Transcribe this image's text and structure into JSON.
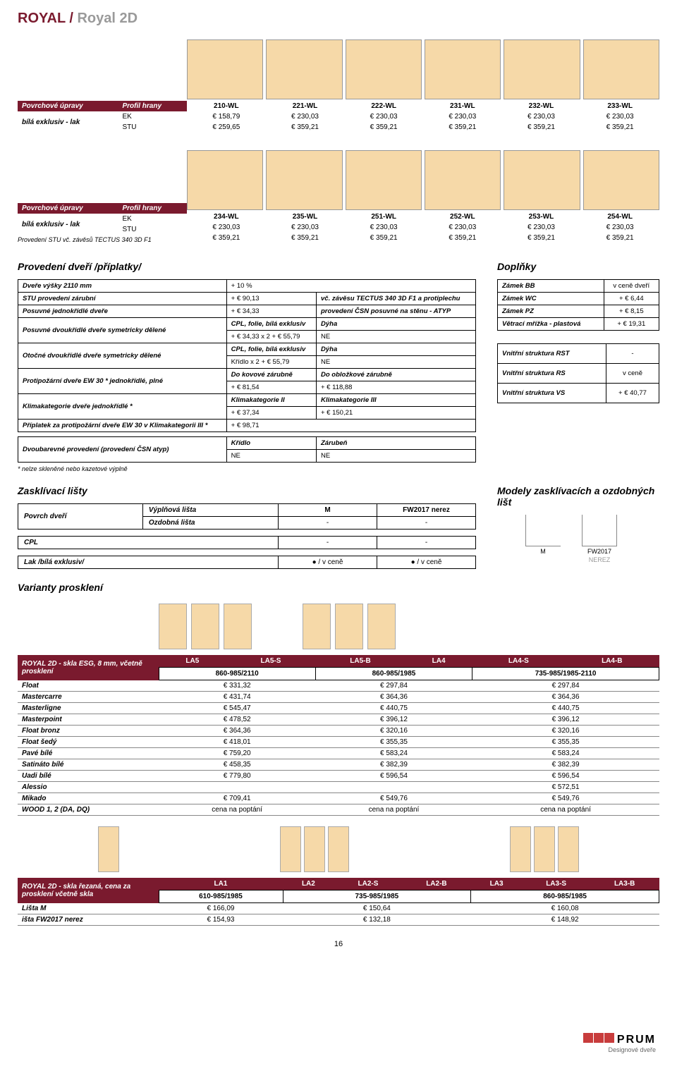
{
  "title_a": "ROYAL /",
  "title_b": " Royal 2D",
  "surface_label": "Povrchové úpravy",
  "profile_label": "Profil hrany",
  "finish_row_label": "bílá exklusiv - lak",
  "ek": "EK",
  "stu": "STU",
  "block1": {
    "models": [
      "210-WL",
      "221-WL",
      "222-WL",
      "231-WL",
      "232-WL",
      "233-WL"
    ],
    "ek": [
      "€ 158,79",
      "€ 230,03",
      "€ 230,03",
      "€ 230,03",
      "€ 230,03",
      "€ 230,03"
    ],
    "stu": [
      "€ 259,65",
      "€ 359,21",
      "€ 359,21",
      "€ 359,21",
      "€ 359,21",
      "€ 359,21"
    ]
  },
  "block2": {
    "models": [
      "234-WL",
      "235-WL",
      "251-WL",
      "252-WL",
      "253-WL",
      "254-WL"
    ],
    "ek": [
      "€ 230,03",
      "€ 230,03",
      "€ 230,03",
      "€ 230,03",
      "€ 230,03",
      "€ 230,03"
    ],
    "stu": [
      "€ 359,21",
      "€ 359,21",
      "€ 359,21",
      "€ 359,21",
      "€ 359,21",
      "€ 359,21"
    ],
    "note": "Provedení STU vč. závěsů TECTUS 340 3D F1"
  },
  "sec_provedeni": "Provedení dveří /příplatky/",
  "sec_doplnky": "Doplňky",
  "prov": {
    "r1_l": "Dveře výšky 2110 mm",
    "r1_v": "+ 10 %",
    "r2_l": "STU provedení zárubní",
    "r2_v": "+ € 90,13",
    "r2_v2": "vč. závěsu TECTUS 340 3D F1 a protiplechu",
    "r3_l": "Posuvné jednokřídlé dveře",
    "r3_v": "+ € 34,33",
    "r3_v2": "provedení ČSN posuvné na stěnu - ATYP",
    "r4_l": "Posuvné dvoukřídlé dveře symetricky dělené",
    "r4_a": "CPL, folie, bílá exklusiv",
    "r4_b": "Dýha",
    "r4_c": "+ € 34,33 x 2    + € 55,79",
    "r4_d": "NE",
    "r5_l": "Otočné dvoukřídlé dveře symetricky dělené",
    "r5_a": "CPL, folie, bílá exklusiv",
    "r5_b": "Dýha",
    "r5_c": "Křídlo x 2        + € 55,79",
    "r5_d": "NE",
    "r6_l": "Protipožární dveře EW 30 * jednokřídlé, plné",
    "r6_a": "Do kovové zárubně",
    "r6_b": "Do obložkové zárubně",
    "r6_c": "+ € 81,54",
    "r6_d": "+ € 118,88",
    "r7_l": "Klimakategorie dveře jednokřídlé *",
    "r7_a": "Klimakategorie II",
    "r7_b": "Klimakategorie III",
    "r7_c": "+ € 37,34",
    "r7_d": "+ € 150,21",
    "r8_l": "Příplatek za protipožární dveře EW 30 v Klimakategorii III *",
    "r8_v": "+ € 98,71",
    "r9_l": "Dvoubarevné provedení (provedení ČSN atyp)",
    "r9_a": "Křídlo",
    "r9_b": "Zárubeň",
    "r9_c": "NE",
    "r9_d": "NE",
    "note": "* nelze skleněné nebo kazetové výplně"
  },
  "dop": {
    "r1_l": "Zámek BB",
    "r1_v": "v ceně dveří",
    "r2_l": "Zámek WC",
    "r2_v": "+ € 6,44",
    "r3_l": "Zámek PZ",
    "r3_v": "+ € 8,15",
    "r4_l": "Větrací mřížka - plastová",
    "r4_v": "+ € 19,31",
    "r5_l": "Vnitřní struktura RST",
    "r5_v": "-",
    "r6_l": "Vnitřní struktura RS",
    "r6_v": "v ceně",
    "r7_l": "Vnitřní struktura VS",
    "r7_v": "+ € 40,77"
  },
  "sec_zl": "Zasklívací lišty",
  "sec_models": "Modely zasklívacích a ozdobných lišt",
  "zl": {
    "c1": "Povrch dveří",
    "h1": "Výplňová lišta",
    "h2": "M",
    "h3": "FW2017 nerez",
    "oz": "Ozdobná lišta",
    "dash": "-",
    "cpl": "CPL",
    "lak": "Lak /bílá exklusiv/",
    "vcene": "● / v ceně",
    "shape_m": "M",
    "shape_fw": "FW2017",
    "shape_fw2": "NEREZ"
  },
  "sec_var": "Varianty prosklení",
  "var1": {
    "title_l": "ROYAL 2D - skla ESG, 8 mm, včetně prosklení",
    "hdr": [
      "LA5",
      "LA5-S",
      "LA5-B",
      "LA4",
      "LA4-S",
      "LA4-B"
    ],
    "sub": [
      "860-985/2110",
      "860-985/1985",
      "735-985/1985-2110"
    ],
    "rows": [
      {
        "l": "Float",
        "v": [
          "€ 331,32",
          "€ 297,84",
          "€ 297,84"
        ]
      },
      {
        "l": "Mastercarre",
        "v": [
          "€ 431,74",
          "€ 364,36",
          "€ 364,36"
        ]
      },
      {
        "l": "Masterligne",
        "v": [
          "€ 545,47",
          "€ 440,75",
          "€ 440,75"
        ]
      },
      {
        "l": "Masterpoint",
        "v": [
          "€ 478,52",
          "€ 396,12",
          "€ 396,12"
        ]
      },
      {
        "l": "Float bronz",
        "v": [
          "€ 364,36",
          "€ 320,16",
          "€ 320,16"
        ]
      },
      {
        "l": "Float šedý",
        "v": [
          "€ 418,01",
          "€ 355,35",
          "€ 355,35"
        ]
      },
      {
        "l": "Pavé bílé",
        "v": [
          "€ 759,20",
          "€ 583,24",
          "€ 583,24"
        ]
      },
      {
        "l": "Satináto bílé",
        "v": [
          "€ 458,35",
          "€ 382,39",
          "€ 382,39"
        ]
      },
      {
        "l": "Uadi bílé",
        "v": [
          "€ 779,80",
          "€ 596,54",
          "€ 596,54"
        ]
      },
      {
        "l": "Alessio",
        "v": [
          "",
          "",
          "€ 572,51"
        ]
      },
      {
        "l": "Mikado",
        "v": [
          "€ 709,41",
          "€ 549,76",
          "€ 549,76"
        ]
      },
      {
        "l": "WOOD 1, 2 (DA, DQ)",
        "v": [
          "cena na poptání",
          "cena na poptání",
          "cena na poptání"
        ]
      }
    ]
  },
  "var2": {
    "title_l": "ROYAL 2D - skla řezaná, cena za prosklení včetně skla",
    "hdr": [
      "LA1",
      "",
      "LA2",
      "LA2-S",
      "LA2-B",
      "",
      "LA3",
      "LA3-S",
      "LA3-B"
    ],
    "sub": [
      "610-985/1985",
      "735-985/1985",
      "860-985/1985"
    ],
    "rows": [
      {
        "l": "Lišta M",
        "v": [
          "€ 166,09",
          "€ 150,64",
          "€ 160,08"
        ]
      },
      {
        "l": "išta FW2017 nerez",
        "v": [
          "€ 154,93",
          "€ 132,18",
          "€ 148,92"
        ]
      }
    ]
  },
  "page": "16",
  "logo": "PRUM",
  "logo_sub": "Designové dveře"
}
